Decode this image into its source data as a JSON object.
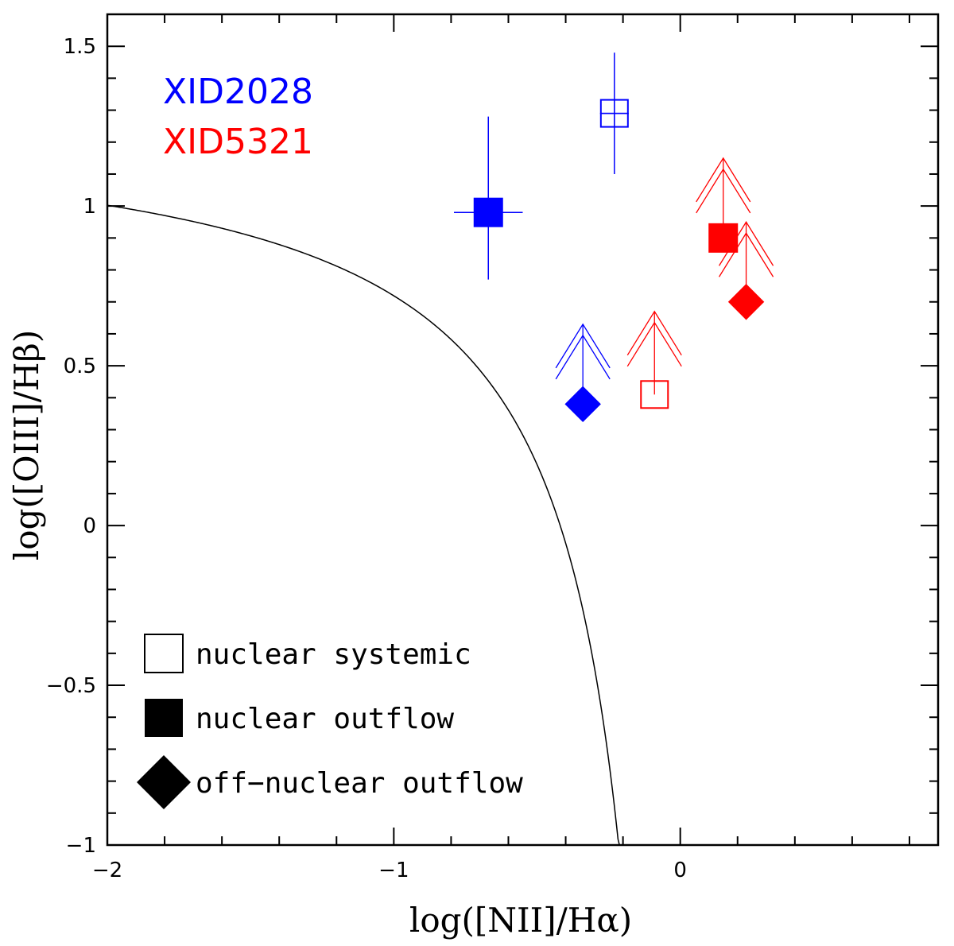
{
  "chart_data": {
    "type": "scatter",
    "xlabel": "log([NII]/Hα)",
    "ylabel": "log([OIII]/Hβ)",
    "xlim": [
      -2,
      0.9
    ],
    "ylim": [
      -1,
      1.6
    ],
    "grid": false,
    "x_ticks": [
      {
        "value": -2,
        "label": "−2"
      },
      {
        "value": -1,
        "label": "−1"
      },
      {
        "value": 0,
        "label": "0"
      }
    ],
    "y_ticks": [
      {
        "value": -1,
        "label": "−1"
      },
      {
        "value": -0.5,
        "label": "−0.5"
      },
      {
        "value": 0,
        "label": "0"
      },
      {
        "value": 0.5,
        "label": "0.5"
      },
      {
        "value": 1,
        "label": "1"
      },
      {
        "value": 1.5,
        "label": "1.5"
      }
    ],
    "curve": {
      "note_formula": "y = 0.61/(x - 0.05) + 1.3",
      "x_range": [
        -2,
        0.02
      ]
    },
    "object_labels": [
      {
        "text": "XID2028",
        "color": "#0000ff"
      },
      {
        "text": "XID5321",
        "color": "#ff0000"
      }
    ],
    "series": [
      {
        "name": "XID2028",
        "color": "#0000ff",
        "points": [
          {
            "kind": "nuclear systemic",
            "marker": "open-square",
            "x": -0.23,
            "y": 1.29,
            "xerr": 0.05,
            "yerr": 0.19
          },
          {
            "kind": "nuclear outflow",
            "marker": "filled-square",
            "x": -0.67,
            "y": 0.98,
            "xerr": 0.12,
            "yerr_up": 0.3,
            "yerr_down": 0.21
          },
          {
            "kind": "off-nuclear outflow",
            "marker": "filled-diamond",
            "x": -0.34,
            "y": 0.38,
            "lower_limit": true,
            "arrow_to": 0.63
          }
        ]
      },
      {
        "name": "XID5321",
        "color": "#ff0000",
        "points": [
          {
            "kind": "nuclear systemic",
            "marker": "open-square",
            "x": -0.09,
            "y": 0.41,
            "lower_limit": true,
            "arrow_to": 0.67
          },
          {
            "kind": "nuclear outflow",
            "marker": "filled-square",
            "x": 0.15,
            "y": 0.9,
            "lower_limit": true,
            "arrow_to": 1.15
          },
          {
            "kind": "off-nuclear outflow",
            "marker": "filled-diamond",
            "x": 0.23,
            "y": 0.7,
            "lower_limit": true,
            "arrow_to": 0.95
          }
        ]
      }
    ],
    "legend": {
      "placement": "bottom-left",
      "entries": [
        {
          "marker": "open-square",
          "label": "nuclear systemic"
        },
        {
          "marker": "filled-square",
          "label": "nuclear outflow"
        },
        {
          "marker": "filled-diamond",
          "label": "off−nuclear outflow"
        }
      ]
    }
  }
}
